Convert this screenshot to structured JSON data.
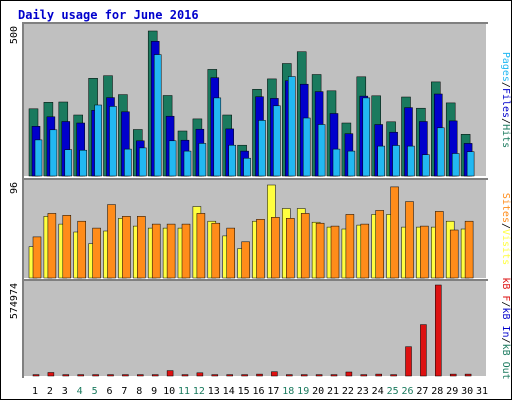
{
  "chart_data": {
    "type": "bar",
    "title": "Daily usage for June 2016",
    "categories": [
      "1",
      "2",
      "3",
      "4",
      "5",
      "6",
      "7",
      "8",
      "9",
      "10",
      "11",
      "12",
      "13",
      "14",
      "15",
      "16",
      "17",
      "18",
      "19",
      "20",
      "21",
      "22",
      "23",
      "24",
      "25",
      "26",
      "27",
      "28",
      "29",
      "30",
      "31"
    ],
    "weekend_days": [
      "4",
      "5",
      "11",
      "12",
      "18",
      "19",
      "25",
      "26"
    ],
    "colors": {
      "title": "#0000cc",
      "hits": "#1a7a5e",
      "files": "#0000cc",
      "pages": "#22b8f2",
      "visits": "#ffff40",
      "sites": "#ff8c1a",
      "kbin": "#0000cc",
      "kbout": "#1a7a5e",
      "kbf": "#dd1111",
      "weekend_label": "#1a7a5e",
      "plot_bg": "#c0c0c0"
    },
    "panels": [
      {
        "name": "hits-files-pages",
        "ymax": 500,
        "ymax_label": "500",
        "axis_labels": [
          {
            "text": "Pages",
            "color": "#22b8f2"
          },
          {
            "text": "/",
            "color": "#000000"
          },
          {
            "text": "Files",
            "color": "#0000cc"
          },
          {
            "text": "/",
            "color": "#000000"
          },
          {
            "text": "Hits",
            "color": "#1a7a5e"
          }
        ],
        "series": [
          {
            "name": "Hits",
            "values": [
              227,
              249,
              250,
              206,
              330,
              339,
              275,
              157,
              490,
              272,
              152,
              193,
              360,
              206,
              104,
              293,
              328,
              380,
              420,
              343,
              288,
              179,
              335,
              271,
              183,
              267,
              229,
              318,
              247,
              141,
              0
            ]
          },
          {
            "name": "Files",
            "values": [
              168,
              200,
              184,
              179,
              222,
              265,
              217,
              119,
              455,
              202,
              121,
              158,
              332,
              159,
              84,
              268,
              262,
              322,
              310,
              285,
              211,
              143,
              270,
              174,
              148,
              231,
              184,
              277,
              186,
              110,
              0
            ]
          },
          {
            "name": "Pages",
            "values": [
              122,
              156,
              89,
              87,
              240,
              235,
              91,
              95,
              410,
              119,
              84,
              110,
              264,
              104,
              60,
              188,
              237,
              336,
              196,
              174,
              91,
              84,
              264,
              101,
              103,
              101,
              72,
              163,
              76,
              82,
              0
            ]
          }
        ]
      },
      {
        "name": "visits-sites",
        "ymax": 96,
        "ymax_label": "96",
        "axis_labels": [
          {
            "text": "Sites",
            "color": "#ff8c1a"
          },
          {
            "text": "/",
            "color": "#000000"
          },
          {
            "text": "Visits",
            "color": "#ffff40"
          }
        ],
        "series": [
          {
            "name": "Visits",
            "values": [
              32,
              63,
              55,
              47,
              35,
              48,
              61,
              53,
              51,
              51,
              51,
              73,
              58,
              43,
              30,
              58,
              95,
              71,
              71,
              57,
              52,
              50,
              54,
              65,
              65,
              52,
              52,
              52,
              58,
              50,
              0
            ]
          },
          {
            "name": "Sites",
            "values": [
              42,
              66,
              64,
              58,
              51,
              75,
              63,
              63,
              55,
              55,
              55,
              66,
              56,
              51,
              37,
              60,
              62,
              61,
              66,
              56,
              53,
              65,
              55,
              69,
              93,
              78,
              53,
              68,
              49,
              58,
              0
            ]
          }
        ]
      },
      {
        "name": "kbytes",
        "ymax": 574974,
        "ymax_label": "574974",
        "axis_labels": [
          {
            "text": "kB F",
            "color": "#dd1111"
          },
          {
            "text": "/",
            "color": "#000000"
          },
          {
            "text": "kB In",
            "color": "#0000cc"
          },
          {
            "text": "/",
            "color": "#000000"
          },
          {
            "text": "kB Out",
            "color": "#1a7a5e"
          }
        ],
        "series": [
          {
            "name": "kB F",
            "values": [
              9000,
              22000,
              9000,
              9000,
              9000,
              9000,
              9000,
              9000,
              9000,
              34000,
              9000,
              20000,
              9000,
              9000,
              9000,
              12000,
              27000,
              9000,
              9000,
              9000,
              9000,
              25000,
              9000,
              12000,
              9000,
              185000,
              325000,
              574974,
              12000,
              12000,
              0
            ]
          }
        ]
      }
    ]
  }
}
